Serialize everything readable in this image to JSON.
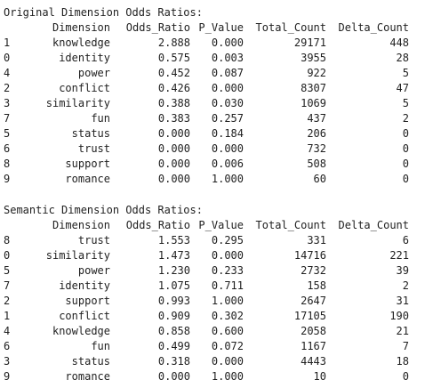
{
  "original": {
    "title": "Original Dimension Odds Ratios:",
    "columns": [
      "Dimension",
      "Odds_Ratio",
      "P_Value",
      "Total_Count",
      "Delta_Count"
    ],
    "rows": [
      {
        "index": "1",
        "dimension": "knowledge",
        "odds_ratio": "2.888",
        "p_value": "0.000",
        "total_count": "29171",
        "delta_count": "448"
      },
      {
        "index": "0",
        "dimension": "identity",
        "odds_ratio": "0.575",
        "p_value": "0.003",
        "total_count": "3955",
        "delta_count": "28"
      },
      {
        "index": "4",
        "dimension": "power",
        "odds_ratio": "0.452",
        "p_value": "0.087",
        "total_count": "922",
        "delta_count": "5"
      },
      {
        "index": "2",
        "dimension": "conflict",
        "odds_ratio": "0.426",
        "p_value": "0.000",
        "total_count": "8307",
        "delta_count": "47"
      },
      {
        "index": "3",
        "dimension": "similarity",
        "odds_ratio": "0.388",
        "p_value": "0.030",
        "total_count": "1069",
        "delta_count": "5"
      },
      {
        "index": "7",
        "dimension": "fun",
        "odds_ratio": "0.383",
        "p_value": "0.257",
        "total_count": "437",
        "delta_count": "2"
      },
      {
        "index": "5",
        "dimension": "status",
        "odds_ratio": "0.000",
        "p_value": "0.184",
        "total_count": "206",
        "delta_count": "0"
      },
      {
        "index": "6",
        "dimension": "trust",
        "odds_ratio": "0.000",
        "p_value": "0.000",
        "total_count": "732",
        "delta_count": "0"
      },
      {
        "index": "8",
        "dimension": "support",
        "odds_ratio": "0.000",
        "p_value": "0.006",
        "total_count": "508",
        "delta_count": "0"
      },
      {
        "index": "9",
        "dimension": "romance",
        "odds_ratio": "0.000",
        "p_value": "1.000",
        "total_count": "60",
        "delta_count": "0"
      }
    ]
  },
  "semantic": {
    "title": "Semantic Dimension Odds Ratios:",
    "columns": [
      "Dimension",
      "Odds_Ratio",
      "P_Value",
      "Total_Count",
      "Delta_Count"
    ],
    "rows": [
      {
        "index": "8",
        "dimension": "trust",
        "odds_ratio": "1.553",
        "p_value": "0.295",
        "total_count": "331",
        "delta_count": "6"
      },
      {
        "index": "0",
        "dimension": "similarity",
        "odds_ratio": "1.473",
        "p_value": "0.000",
        "total_count": "14716",
        "delta_count": "221"
      },
      {
        "index": "5",
        "dimension": "power",
        "odds_ratio": "1.230",
        "p_value": "0.233",
        "total_count": "2732",
        "delta_count": "39"
      },
      {
        "index": "7",
        "dimension": "identity",
        "odds_ratio": "1.075",
        "p_value": "0.711",
        "total_count": "158",
        "delta_count": "2"
      },
      {
        "index": "2",
        "dimension": "support",
        "odds_ratio": "0.993",
        "p_value": "1.000",
        "total_count": "2647",
        "delta_count": "31"
      },
      {
        "index": "1",
        "dimension": "conflict",
        "odds_ratio": "0.909",
        "p_value": "0.302",
        "total_count": "17105",
        "delta_count": "190"
      },
      {
        "index": "4",
        "dimension": "knowledge",
        "odds_ratio": "0.858",
        "p_value": "0.600",
        "total_count": "2058",
        "delta_count": "21"
      },
      {
        "index": "6",
        "dimension": "fun",
        "odds_ratio": "0.499",
        "p_value": "0.072",
        "total_count": "1167",
        "delta_count": "7"
      },
      {
        "index": "3",
        "dimension": "status",
        "odds_ratio": "0.318",
        "p_value": "0.000",
        "total_count": "4443",
        "delta_count": "18"
      },
      {
        "index": "9",
        "dimension": "romance",
        "odds_ratio": "0.000",
        "p_value": "1.000",
        "total_count": "10",
        "delta_count": "0"
      }
    ]
  }
}
